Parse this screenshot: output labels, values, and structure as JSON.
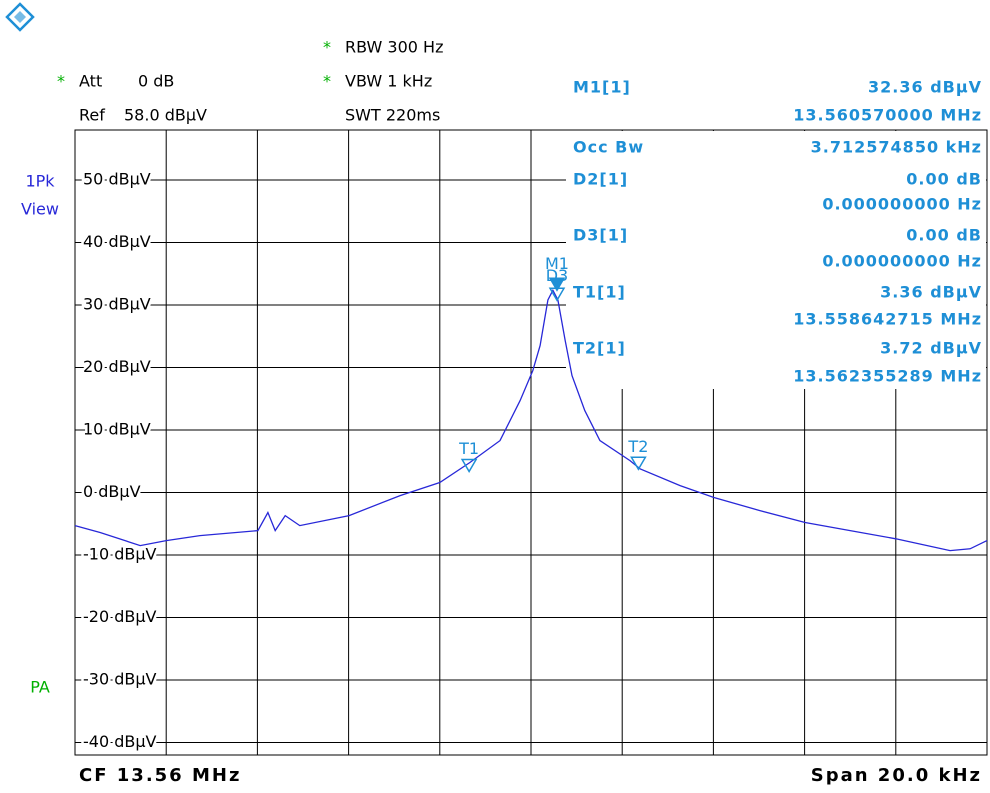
{
  "chart_data": {
    "type": "line",
    "settings": {
      "rbw": "RBW 300 Hz",
      "vbw": "VBW 1 kHz",
      "swt": "SWT 220ms",
      "att": "Att",
      "att_value": "0 dB",
      "ref": "Ref",
      "ref_value": "58.0 dBµV",
      "trace": "1Pk",
      "view": "View",
      "detector": "PA"
    },
    "footer": {
      "center": "CF 13.56 MHz",
      "span": "Span 20.0 kHz"
    },
    "x": [
      13.55,
      13.55055,
      13.55143,
      13.552,
      13.55274,
      13.55401,
      13.55423,
      13.55439,
      13.55461,
      13.55493,
      13.55601,
      13.55713,
      13.558,
      13.55866,
      13.55932,
      13.55976,
      13.56004,
      13.5602,
      13.56037,
      13.56048,
      13.56059,
      13.56075,
      13.5609,
      13.56118,
      13.56151,
      13.56217,
      13.56239,
      13.56327,
      13.56401,
      13.56502,
      13.56601,
      13.567,
      13.568,
      13.56919,
      13.56963,
      13.57
    ],
    "values": [
      -5.3,
      -6.4,
      -8.5,
      -7.7,
      -6.9,
      -6.1,
      -3.2,
      -6.1,
      -3.7,
      -5.3,
      -3.7,
      -0.5,
      1.6,
      4.8,
      8.3,
      14.7,
      19.5,
      23.5,
      30.8,
      32.36,
      30.8,
      24.3,
      18.7,
      13.1,
      8.3,
      5.1,
      3.8,
      1.1,
      -0.8,
      -2.9,
      -4.8,
      -6.1,
      -7.4,
      -9.3,
      -9.0,
      -7.7
    ],
    "color": "#2828d8",
    "marker_color": "#1e8fd6",
    "xlim": [
      13.55,
      13.57
    ],
    "xticks": [
      13.55,
      13.552,
      13.554,
      13.556,
      13.558,
      13.56,
      13.562,
      13.564,
      13.566,
      13.568,
      13.57
    ],
    "ylim": [
      -42,
      58
    ],
    "yticks": [
      {
        "value": 50,
        "label": "50 dBµV"
      },
      {
        "value": 40,
        "label": "40 dBµV"
      },
      {
        "value": 30,
        "label": "30 dBµV"
      },
      {
        "value": 20,
        "label": "20 dBµV"
      },
      {
        "value": 10,
        "label": "10 dBµV"
      },
      {
        "value": 0,
        "label": "0 dBµV"
      },
      {
        "value": -10,
        "label": "-10 dBµV"
      },
      {
        "value": -20,
        "label": "-20 dBµV"
      },
      {
        "value": -30,
        "label": "-30 dBµV"
      },
      {
        "value": -40,
        "label": "-40 dBµV"
      }
    ],
    "grid": true,
    "markers": [
      {
        "tag": "M1",
        "name": "M1[1]",
        "y": {
          "value": 32.36,
          "label": "32.36 dBµV"
        },
        "x": {
          "value": 13.56057,
          "label": "13.560570000 MHz"
        }
      },
      {
        "name": "D2[1]",
        "delta_y": "0.00 dB",
        "delta_x": "0.000000000 Hz"
      },
      {
        "tag": "D3",
        "name": "D3[1]",
        "delta_y": "0.00 dB",
        "delta_x": "0.000000000 Hz"
      },
      {
        "tag": "T1",
        "name": "T1[1]",
        "y": {
          "value": 3.36,
          "label": "3.36 dBµV"
        },
        "x": {
          "value": 13.558642715,
          "label": "13.558642715 MHz"
        }
      },
      {
        "tag": "T2",
        "name": "T2[1]",
        "y": {
          "value": 3.72,
          "label": "3.72 dBµV"
        },
        "x": {
          "value": 13.562355289,
          "label": "13.562355289 MHz"
        }
      }
    ],
    "occ_bw": {
      "name": "Occ Bw",
      "value": "3.712574850 kHz"
    }
  }
}
